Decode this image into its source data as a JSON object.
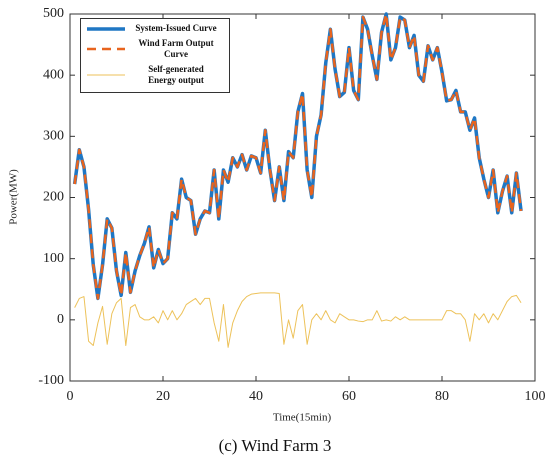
{
  "chart_data": {
    "type": "line",
    "caption": "(c) Wind Farm 3",
    "x_label": "Time(15min)",
    "y_label": "Power(MW)",
    "xlim": [
      0,
      100
    ],
    "xticks": [
      0,
      20,
      40,
      60,
      80,
      100
    ],
    "ylim": [
      -100,
      500
    ],
    "yticks": [
      -100,
      0,
      100,
      200,
      300,
      400,
      500
    ],
    "legend": "upper left",
    "x": [
      1,
      2,
      3,
      4,
      5,
      6,
      7,
      8,
      9,
      10,
      11,
      12,
      13,
      14,
      15,
      16,
      17,
      18,
      19,
      20,
      21,
      22,
      23,
      24,
      25,
      26,
      27,
      28,
      29,
      30,
      31,
      32,
      33,
      34,
      35,
      36,
      37,
      38,
      39,
      40,
      41,
      42,
      43,
      44,
      45,
      46,
      47,
      48,
      49,
      50,
      51,
      52,
      53,
      54,
      55,
      56,
      57,
      58,
      59,
      60,
      61,
      62,
      63,
      64,
      65,
      66,
      67,
      68,
      69,
      70,
      71,
      72,
      73,
      74,
      75,
      76,
      77,
      78,
      79,
      80,
      81,
      82,
      83,
      84,
      85,
      86,
      87,
      88,
      89,
      90,
      91,
      92,
      93,
      94,
      95,
      96,
      97
    ],
    "series": [
      {
        "name": "System-Issued Curve",
        "color": "#1f77c4",
        "style": "solid",
        "width": 3.5,
        "values": [
          222,
          278,
          250,
          180,
          90,
          35,
          90,
          165,
          150,
          80,
          40,
          110,
          45,
          80,
          105,
          125,
          152,
          85,
          115,
          92,
          100,
          175,
          165,
          230,
          200,
          195,
          140,
          165,
          178,
          175,
          245,
          165,
          245,
          225,
          265,
          250,
          270,
          245,
          268,
          265,
          240,
          310,
          245,
          195,
          250,
          195,
          275,
          265,
          340,
          370,
          245,
          200,
          300,
          335,
          420,
          475,
          410,
          365,
          372,
          445,
          375,
          360,
          495,
          475,
          432,
          393,
          470,
          500,
          425,
          445,
          495,
          490,
          445,
          465,
          400,
          390,
          448,
          425,
          445,
          405,
          358,
          360,
          375,
          340,
          340,
          310,
          330,
          265,
          230,
          200,
          245,
          175,
          210,
          235,
          175,
          240,
          178
        ]
      },
      {
        "name": "Wind Farm Output Curve",
        "color": "#e8641e",
        "style": "dashed",
        "width": 2.5,
        "values": [
          222,
          278,
          250,
          180,
          90,
          35,
          90,
          165,
          150,
          80,
          40,
          110,
          45,
          80,
          105,
          125,
          152,
          85,
          115,
          92,
          100,
          175,
          165,
          230,
          200,
          195,
          140,
          165,
          178,
          175,
          245,
          165,
          245,
          225,
          265,
          250,
          270,
          245,
          268,
          265,
          240,
          310,
          245,
          195,
          250,
          195,
          275,
          265,
          340,
          370,
          245,
          200,
          300,
          335,
          420,
          475,
          410,
          365,
          372,
          445,
          375,
          360,
          495,
          475,
          432,
          393,
          470,
          500,
          425,
          445,
          495,
          490,
          445,
          465,
          400,
          390,
          448,
          425,
          445,
          405,
          358,
          360,
          375,
          340,
          340,
          310,
          330,
          265,
          230,
          200,
          245,
          175,
          210,
          235,
          175,
          240,
          178
        ]
      },
      {
        "name": "Self-generated\nEnergy output",
        "color": "#edc25a",
        "style": "solid",
        "width": 1,
        "values": [
          20,
          35,
          38,
          -35,
          -42,
          -5,
          22,
          -40,
          10,
          28,
          35,
          -42,
          20,
          25,
          5,
          0,
          0,
          5,
          -5,
          15,
          0,
          15,
          0,
          10,
          25,
          30,
          35,
          25,
          35,
          35,
          -5,
          -35,
          25,
          -45,
          -5,
          15,
          30,
          38,
          42,
          43,
          44,
          44,
          44,
          44,
          43,
          -40,
          0,
          -30,
          15,
          25,
          -40,
          0,
          10,
          0,
          15,
          0,
          -5,
          10,
          5,
          0,
          0,
          -2,
          -3,
          0,
          0,
          15,
          -2,
          0,
          -2,
          5,
          0,
          5,
          0,
          0,
          0,
          0,
          0,
          0,
          0,
          0,
          15,
          15,
          10,
          10,
          0,
          -35,
          10,
          0,
          10,
          -5,
          10,
          0,
          15,
          30,
          38,
          40,
          28
        ]
      }
    ]
  }
}
